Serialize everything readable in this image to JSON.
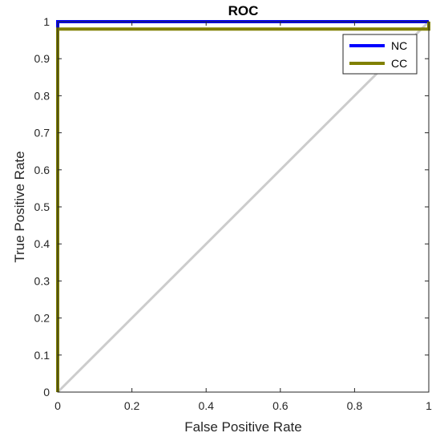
{
  "chart_data": {
    "type": "line",
    "title": "ROC",
    "xlabel": "False Positive Rate",
    "ylabel": "True Positive Rate",
    "xlim": [
      0,
      1
    ],
    "ylim": [
      0,
      1
    ],
    "xticks": [
      "0",
      "0.2",
      "0.4",
      "0.6",
      "0.8",
      "1"
    ],
    "yticks": [
      "0",
      "0.1",
      "0.2",
      "0.3",
      "0.4",
      "0.5",
      "0.6",
      "0.7",
      "0.8",
      "0.9",
      "1"
    ],
    "grid": false,
    "legend_position": "top-right",
    "series": [
      {
        "name": "NC",
        "color": "#0000ff",
        "x": [
          0,
          0,
          1
        ],
        "y": [
          0,
          1,
          1
        ]
      },
      {
        "name": "CC",
        "color": "#808000",
        "x": [
          0,
          0,
          1,
          1
        ],
        "y": [
          0,
          0.98,
          0.98,
          1
        ]
      }
    ],
    "reference_line": {
      "color": "#cccccc",
      "x": [
        0,
        1
      ],
      "y": [
        0,
        1
      ]
    }
  }
}
